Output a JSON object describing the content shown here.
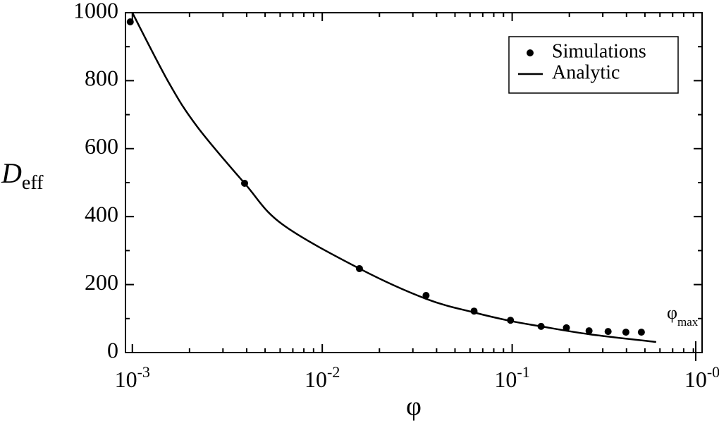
{
  "chart_data": {
    "type": "scatter-line",
    "x_label": "φ",
    "y_label": {
      "text": "D",
      "sub": "eff"
    },
    "annotation": {
      "text": "φ",
      "sub": "max"
    },
    "log_x": true,
    "xlim": [
      0.00092,
      1
    ],
    "ylim": [
      0,
      1000
    ],
    "xticks": [
      {
        "value": 0.001,
        "label": "10",
        "exponent": "-3"
      },
      {
        "value": 0.01,
        "label": "10",
        "exponent": "-2"
      },
      {
        "value": 0.1,
        "label": "10",
        "exponent": "-1"
      },
      {
        "value": 1,
        "label": "10",
        "exponent": "-0"
      }
    ],
    "yticks": [
      0,
      200,
      400,
      600,
      800,
      1000
    ],
    "legend_position": "upper right",
    "series": [
      {
        "name": "Simulations",
        "style": "points",
        "color": "#000000",
        "x": [
          0.000975,
          0.0039,
          0.0157,
          0.0352,
          0.063,
          0.098,
          0.142,
          0.193,
          0.254,
          0.32,
          0.397,
          0.479
        ],
        "values": [
          973,
          498,
          247,
          168,
          122,
          95,
          77,
          73,
          64,
          62,
          60,
          60
        ]
      },
      {
        "name": "Analytic",
        "style": "line",
        "color": "#000000",
        "x": [
          0.001,
          0.00156,
          0.0022,
          0.0039,
          0.00614,
          0.0157,
          0.0352,
          0.063,
          0.098,
          0.142,
          0.254,
          0.573
        ],
        "values": [
          1000,
          793,
          664,
          498,
          378,
          247,
          158,
          118,
          93,
          77,
          54,
          31
        ]
      }
    ]
  }
}
